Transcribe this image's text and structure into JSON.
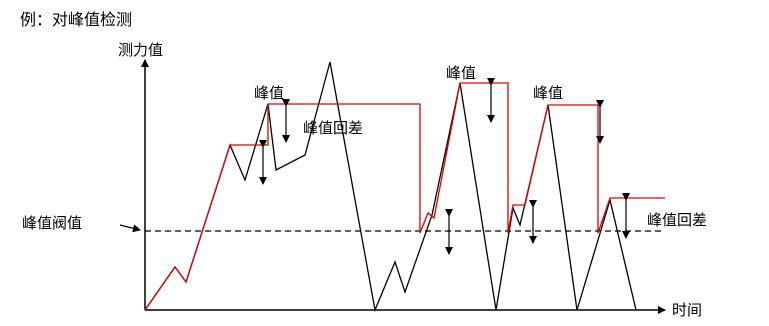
{
  "title": "例：对峰值检测",
  "axes": {
    "y_label": "测力值",
    "x_label": "时间"
  },
  "labels": {
    "peak_1": "峰值",
    "peak_2": "峰值",
    "peak_3": "峰值",
    "hysteresis_1": "峰值回差",
    "hysteresis_2": "峰值回差",
    "threshold": "峰值阀值"
  },
  "colors": {
    "signal": "#000000",
    "peak_hold": "#e00000",
    "threshold_line": "#000000",
    "background": "#ffffff"
  }
}
